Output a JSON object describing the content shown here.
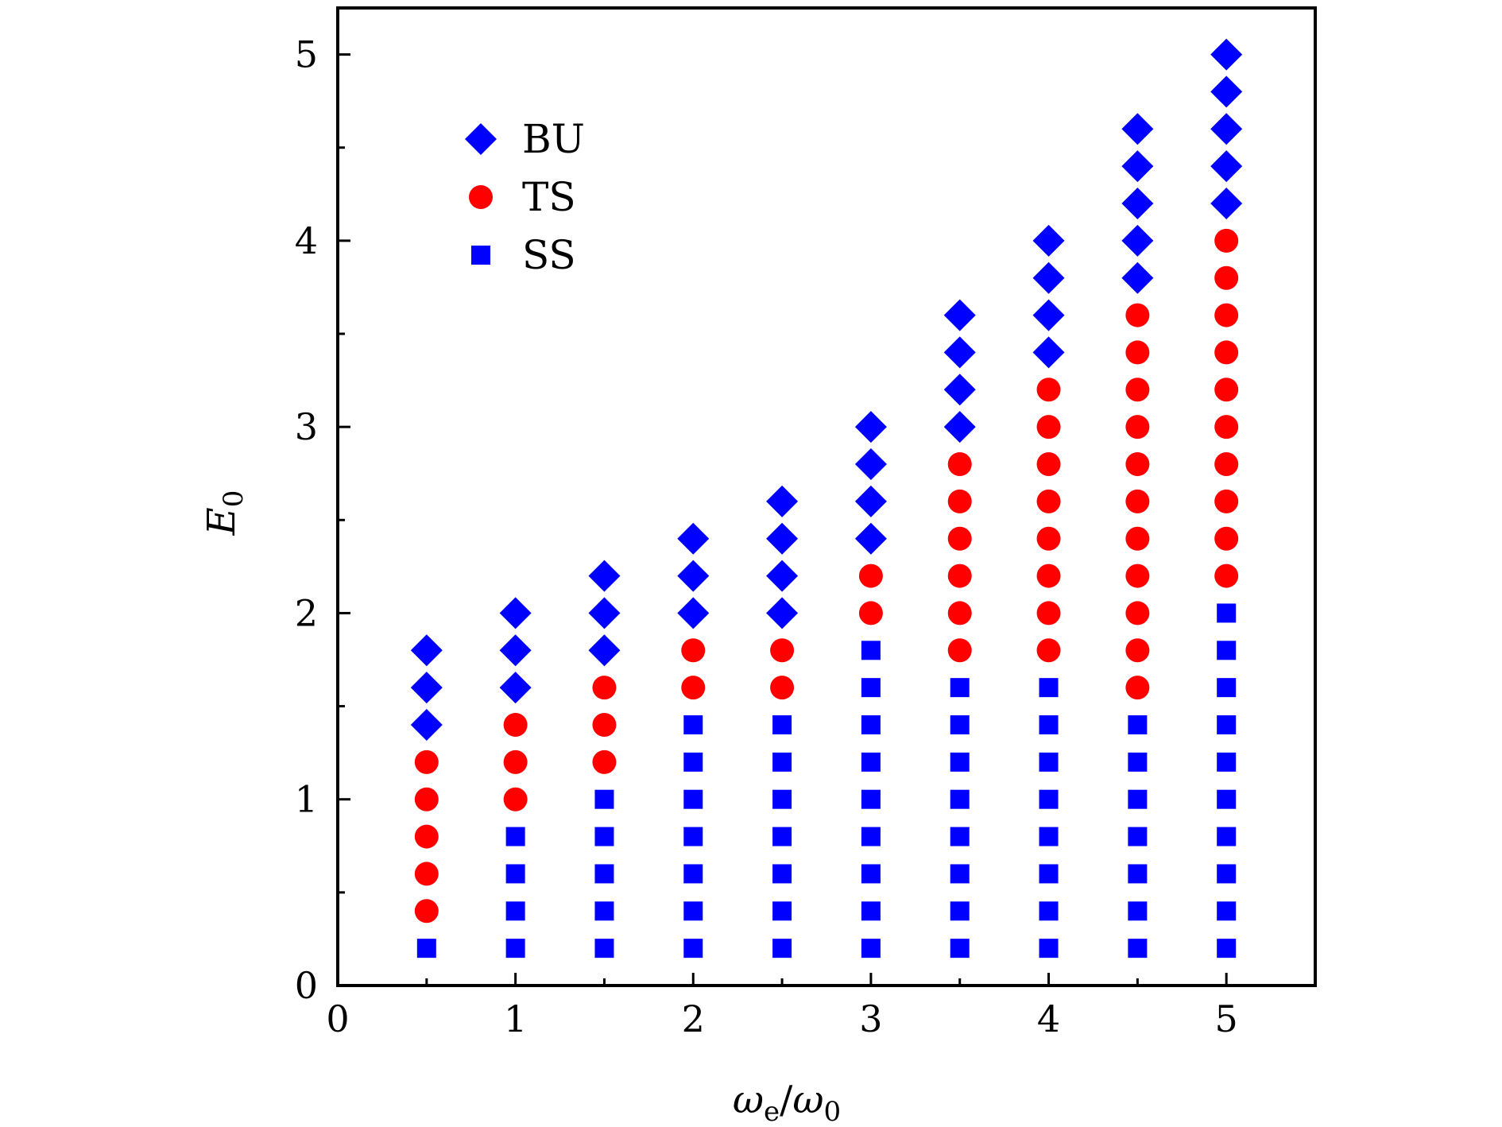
{
  "chart_data": {
    "type": "scatter",
    "xlabel": {
      "main": "ω",
      "main_sub": "e",
      "sep": "/",
      "denom": "ω",
      "denom_sub": "0"
    },
    "ylabel": {
      "main": "E",
      "sub": "0"
    },
    "xlim": [
      0,
      5.5
    ],
    "ylim": [
      0,
      5.25
    ],
    "xticks": [
      0,
      1,
      2,
      3,
      4,
      5
    ],
    "yticks": [
      0,
      1,
      2,
      3,
      4,
      5
    ],
    "xtick_labels": [
      "0",
      "1",
      "2",
      "3",
      "4",
      "5"
    ],
    "ytick_labels": [
      "0",
      "1",
      "2",
      "3",
      "4",
      "5"
    ],
    "legend_position": "upper-left",
    "series": [
      {
        "name": "BU",
        "marker": "diamond",
        "color": "#0000ff",
        "points": [
          [
            0.5,
            1.4
          ],
          [
            0.5,
            1.6
          ],
          [
            0.5,
            1.8
          ],
          [
            1.0,
            1.6
          ],
          [
            1.0,
            1.8
          ],
          [
            1.0,
            2.0
          ],
          [
            1.5,
            1.8
          ],
          [
            1.5,
            2.0
          ],
          [
            1.5,
            2.2
          ],
          [
            2.0,
            2.0
          ],
          [
            2.0,
            2.2
          ],
          [
            2.0,
            2.4
          ],
          [
            2.5,
            2.0
          ],
          [
            2.5,
            2.2
          ],
          [
            2.5,
            2.4
          ],
          [
            2.5,
            2.6
          ],
          [
            3.0,
            2.4
          ],
          [
            3.0,
            2.6
          ],
          [
            3.0,
            2.8
          ],
          [
            3.0,
            3.0
          ],
          [
            3.5,
            3.0
          ],
          [
            3.5,
            3.2
          ],
          [
            3.5,
            3.4
          ],
          [
            3.5,
            3.6
          ],
          [
            4.0,
            3.4
          ],
          [
            4.0,
            3.6
          ],
          [
            4.0,
            3.8
          ],
          [
            4.0,
            4.0
          ],
          [
            4.5,
            3.8
          ],
          [
            4.5,
            4.0
          ],
          [
            4.5,
            4.2
          ],
          [
            4.5,
            4.4
          ],
          [
            4.5,
            4.6
          ],
          [
            5.0,
            4.2
          ],
          [
            5.0,
            4.4
          ],
          [
            5.0,
            4.6
          ],
          [
            5.0,
            4.8
          ],
          [
            5.0,
            5.0
          ]
        ]
      },
      {
        "name": "TS",
        "marker": "circle",
        "color": "#ff0000",
        "points": [
          [
            0.5,
            0.4
          ],
          [
            0.5,
            0.6
          ],
          [
            0.5,
            0.8
          ],
          [
            0.5,
            1.0
          ],
          [
            0.5,
            1.2
          ],
          [
            1.0,
            1.0
          ],
          [
            1.0,
            1.2
          ],
          [
            1.0,
            1.4
          ],
          [
            1.5,
            1.2
          ],
          [
            1.5,
            1.4
          ],
          [
            1.5,
            1.6
          ],
          [
            2.0,
            1.6
          ],
          [
            2.0,
            1.8
          ],
          [
            2.5,
            1.6
          ],
          [
            2.5,
            1.8
          ],
          [
            3.0,
            2.0
          ],
          [
            3.0,
            2.2
          ],
          [
            3.5,
            1.8
          ],
          [
            3.5,
            2.0
          ],
          [
            3.5,
            2.2
          ],
          [
            3.5,
            2.4
          ],
          [
            3.5,
            2.6
          ],
          [
            3.5,
            2.8
          ],
          [
            4.0,
            1.8
          ],
          [
            4.0,
            2.0
          ],
          [
            4.0,
            2.2
          ],
          [
            4.0,
            2.4
          ],
          [
            4.0,
            2.6
          ],
          [
            4.0,
            2.8
          ],
          [
            4.0,
            3.0
          ],
          [
            4.0,
            3.2
          ],
          [
            4.5,
            1.6
          ],
          [
            4.5,
            1.8
          ],
          [
            4.5,
            2.0
          ],
          [
            4.5,
            2.2
          ],
          [
            4.5,
            2.4
          ],
          [
            4.5,
            2.6
          ],
          [
            4.5,
            2.8
          ],
          [
            4.5,
            3.0
          ],
          [
            4.5,
            3.2
          ],
          [
            4.5,
            3.4
          ],
          [
            4.5,
            3.6
          ],
          [
            5.0,
            2.2
          ],
          [
            5.0,
            2.4
          ],
          [
            5.0,
            2.6
          ],
          [
            5.0,
            2.8
          ],
          [
            5.0,
            3.0
          ],
          [
            5.0,
            3.2
          ],
          [
            5.0,
            3.4
          ],
          [
            5.0,
            3.6
          ],
          [
            5.0,
            3.8
          ],
          [
            5.0,
            4.0
          ]
        ]
      },
      {
        "name": "SS",
        "marker": "square",
        "color": "#0000ff",
        "points": [
          [
            0.5,
            0.2
          ],
          [
            1.0,
            0.2
          ],
          [
            1.0,
            0.4
          ],
          [
            1.0,
            0.6
          ],
          [
            1.0,
            0.8
          ],
          [
            1.5,
            0.2
          ],
          [
            1.5,
            0.4
          ],
          [
            1.5,
            0.6
          ],
          [
            1.5,
            0.8
          ],
          [
            1.5,
            1.0
          ],
          [
            2.0,
            0.2
          ],
          [
            2.0,
            0.4
          ],
          [
            2.0,
            0.6
          ],
          [
            2.0,
            0.8
          ],
          [
            2.0,
            1.0
          ],
          [
            2.0,
            1.2
          ],
          [
            2.0,
            1.4
          ],
          [
            2.5,
            0.2
          ],
          [
            2.5,
            0.4
          ],
          [
            2.5,
            0.6
          ],
          [
            2.5,
            0.8
          ],
          [
            2.5,
            1.0
          ],
          [
            2.5,
            1.2
          ],
          [
            2.5,
            1.4
          ],
          [
            3.0,
            0.2
          ],
          [
            3.0,
            0.4
          ],
          [
            3.0,
            0.6
          ],
          [
            3.0,
            0.8
          ],
          [
            3.0,
            1.0
          ],
          [
            3.0,
            1.2
          ],
          [
            3.0,
            1.4
          ],
          [
            3.0,
            1.6
          ],
          [
            3.0,
            1.8
          ],
          [
            3.5,
            0.2
          ],
          [
            3.5,
            0.4
          ],
          [
            3.5,
            0.6
          ],
          [
            3.5,
            0.8
          ],
          [
            3.5,
            1.0
          ],
          [
            3.5,
            1.2
          ],
          [
            3.5,
            1.4
          ],
          [
            3.5,
            1.6
          ],
          [
            4.0,
            0.2
          ],
          [
            4.0,
            0.4
          ],
          [
            4.0,
            0.6
          ],
          [
            4.0,
            0.8
          ],
          [
            4.0,
            1.0
          ],
          [
            4.0,
            1.2
          ],
          [
            4.0,
            1.4
          ],
          [
            4.0,
            1.6
          ],
          [
            4.5,
            0.2
          ],
          [
            4.5,
            0.4
          ],
          [
            4.5,
            0.6
          ],
          [
            4.5,
            0.8
          ],
          [
            4.5,
            1.0
          ],
          [
            4.5,
            1.2
          ],
          [
            4.5,
            1.4
          ],
          [
            5.0,
            0.2
          ],
          [
            5.0,
            0.4
          ],
          [
            5.0,
            0.6
          ],
          [
            5.0,
            0.8
          ],
          [
            5.0,
            1.0
          ],
          [
            5.0,
            1.2
          ],
          [
            5.0,
            1.4
          ],
          [
            5.0,
            1.6
          ],
          [
            5.0,
            1.8
          ],
          [
            5.0,
            2.0
          ]
        ]
      }
    ]
  }
}
